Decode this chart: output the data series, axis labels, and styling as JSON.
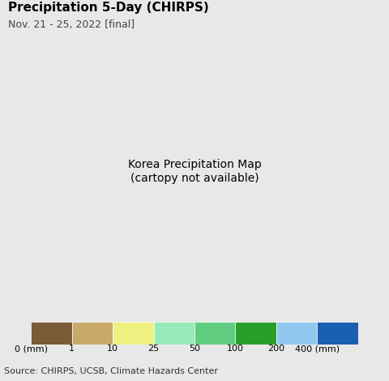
{
  "title": "Precipitation 5-Day (CHIRPS)",
  "subtitle": "Nov. 21 - 25, 2022 [final]",
  "source_text": "Source: CHIRPS, UCSB, Climate Hazards Center",
  "colorbar_labels": [
    "0 (mm)",
    "1",
    "10",
    "25",
    "50",
    "100",
    "200",
    "400 (mm)"
  ],
  "colorbar_colors": [
    "#7a5c38",
    "#c8a96a",
    "#f0f080",
    "#98eab8",
    "#60cc80",
    "#28a028",
    "#90c8f0",
    "#1a60b0"
  ],
  "ocean_color": "#b0e8f8",
  "land_color": "#c8a96a",
  "border_color": "#000000",
  "internal_border_color": "#666666",
  "fig_bg_color": "#e8e8e8",
  "title_fontsize": 11,
  "subtitle_fontsize": 9,
  "source_fontsize": 8,
  "colorbar_label_fontsize": 8,
  "lon_min": 123.5,
  "lon_max": 132.5,
  "lat_min": 32.5,
  "lat_max": 43.5
}
